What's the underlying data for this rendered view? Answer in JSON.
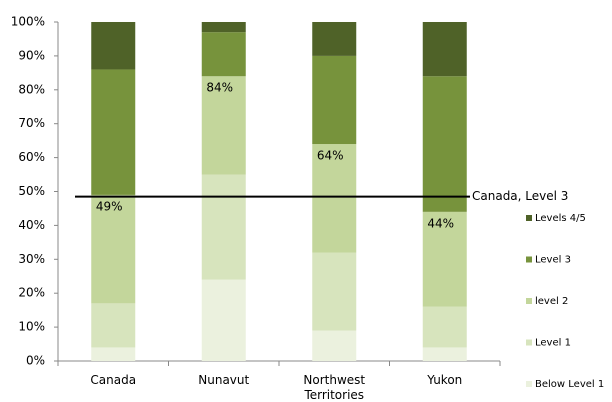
{
  "chart_data": {
    "type": "stacked_bar",
    "categories": [
      "Canada",
      "Nunavut",
      "Northwest Territories",
      "Yukon"
    ],
    "series": [
      {
        "name": "Below Level 1",
        "color": "#ebf1de",
        "values": [
          4,
          24,
          9,
          4
        ]
      },
      {
        "name": "Level 1",
        "color": "#d7e4bd",
        "values": [
          13,
          31,
          23,
          12
        ]
      },
      {
        "name": "level 2",
        "color": "#c3d69b",
        "values": [
          32,
          29,
          32,
          28
        ]
      },
      {
        "name": "Level 3",
        "color": "#77933c",
        "values": [
          37,
          13,
          26,
          40
        ]
      },
      {
        "name": "Levels 4/5",
        "color": "#4f6228",
        "values": [
          14,
          3,
          10,
          16
        ]
      }
    ],
    "annotations": [
      "49%",
      "84%",
      "64%",
      "44%"
    ],
    "reference_line": {
      "label": "Canada,  Level  3",
      "value": 48.5,
      "color": "#000000"
    },
    "ylim": [
      0,
      100
    ],
    "yticks": [
      {
        "value": 0,
        "label": "0%"
      },
      {
        "value": 10,
        "label": "10%"
      },
      {
        "value": 20,
        "label": "20%"
      },
      {
        "value": 30,
        "label": "30%"
      },
      {
        "value": 40,
        "label": "40%"
      },
      {
        "value": 50,
        "label": "50%"
      },
      {
        "value": 60,
        "label": "60%"
      },
      {
        "value": 70,
        "label": "70%"
      },
      {
        "value": 80,
        "label": "80%"
      },
      {
        "value": 90,
        "label": "90%"
      },
      {
        "value": 100,
        "label": "100%"
      }
    ],
    "grid": false,
    "legend": "right"
  }
}
